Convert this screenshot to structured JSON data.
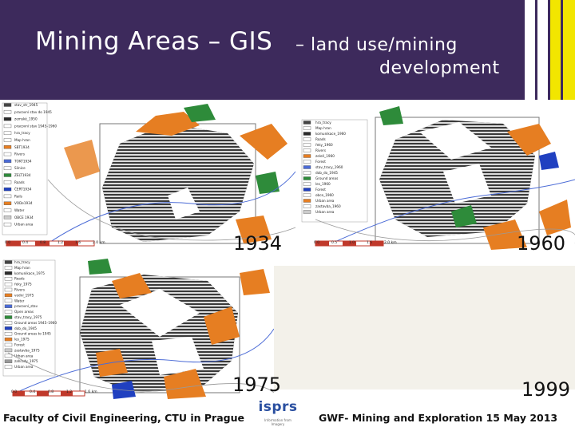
{
  "slide": {
    "title_main": "Mining Areas – GIS",
    "title_sub_1": "– land use/mining",
    "title_sub_2": "development",
    "stripe_colors": [
      "#ffffff",
      "#ffffff",
      "#f2e600",
      "#f2e600",
      "#1a1a1a"
    ]
  },
  "maps": [
    {
      "year": "1934",
      "legend": [
        "stav_str_1945",
        "pracovní stav do 1945",
        "zemské_1950",
        "pracovní stav 1945–1960",
        "hra_tracy",
        "Map hran",
        "SBT1934",
        "Rivers",
        "TOKT1934",
        "Silnice",
        "ZELT1934",
        "Roads",
        "ČERT1934",
        "Rails",
        "VODe1934",
        "Water",
        "OBCE 1934",
        "Urban area"
      ],
      "scale": [
        "0.0",
        "0.4",
        "0.8",
        "1.2",
        "1.6",
        "2.0 km"
      ]
    },
    {
      "year": "1960",
      "legend": [
        "hra_tracy",
        "Map hran",
        "komunikace_1960",
        "Roads",
        "řeky_1960",
        "Rivers",
        "zeleň_1960",
        "Forest",
        "stav_tracy_1960",
        "dob_do_1945",
        "Ground areas",
        "les_1960",
        "Forest",
        "obce_1960",
        "Urban area",
        "zastavba_1960",
        "Urban area"
      ],
      "scale": [
        "0.0",
        "0.5",
        "1.0",
        "1.5",
        "2.0 km"
      ]
    },
    {
      "year": "1975",
      "legend": [
        "hra_tracy",
        "Map hran",
        "komunikace_1975",
        "Roads",
        "řeky_1975",
        "Rivers",
        "vodní_1975",
        "Water",
        "pracovní_stav",
        "Open areas",
        "stav_tracy_1975",
        "Ground areas 1945–1960",
        "dob_do_1945",
        "Ground areas to 1945",
        "les_1975",
        "Forest",
        "zastavba_1975",
        "Urban area",
        "zahrady_1975",
        "Urban area"
      ],
      "scale": [
        "0.0",
        "0.4",
        "0.8",
        "1.2",
        "1.6 km"
      ]
    },
    {
      "year": "1999",
      "legend": [],
      "scale": []
    }
  ],
  "footer": {
    "left": "Faculty of Civil Engineering, CTU in Prague",
    "logo": "isprs",
    "logo_tagline": "Information from Imagery",
    "right": "GWF- Mining and Exploration 15 May 2013"
  }
}
